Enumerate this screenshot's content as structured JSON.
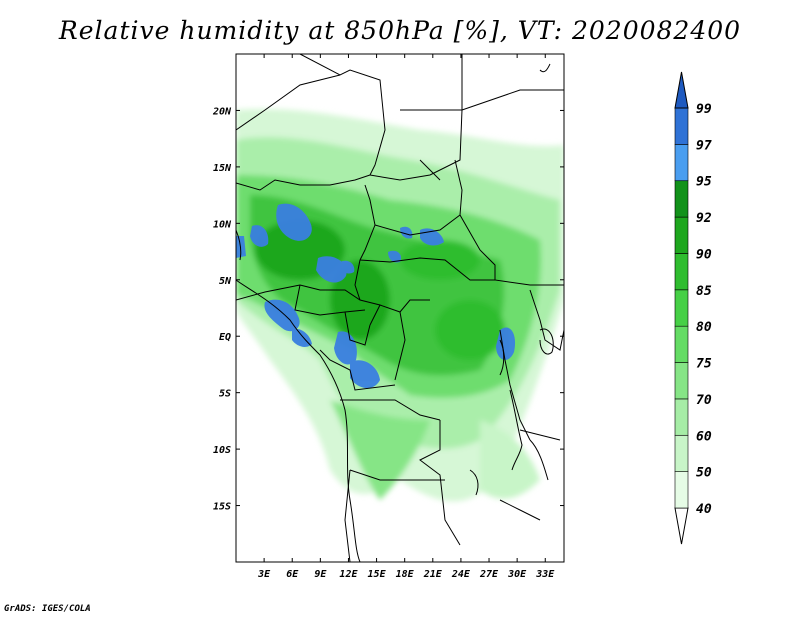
{
  "title": "Relative humidity at 850hPa [%], VT: 2020082400",
  "credit": "GrADS: IGES/COLA",
  "lat_labels": [
    "20N",
    "15N",
    "10N",
    "5N",
    "EQ",
    "5S",
    "10S",
    "15S"
  ],
  "lat_values": [
    20,
    15,
    10,
    5,
    0,
    -5,
    -10,
    -15
  ],
  "lon_labels": [
    "3E",
    "6E",
    "9E",
    "12E",
    "15E",
    "18E",
    "21E",
    "24E",
    "27E",
    "30E",
    "33E"
  ],
  "lon_values": [
    3,
    6,
    9,
    12,
    15,
    18,
    21,
    24,
    27,
    30,
    33
  ],
  "extent": {
    "lon_min": 0,
    "lon_max": 35,
    "lat_min": -20,
    "lat_max": 25
  },
  "colorbar": {
    "levels": [
      "40",
      "50",
      "60",
      "70",
      "75",
      "80",
      "85",
      "90",
      "92",
      "95",
      "97",
      "99"
    ],
    "colors": [
      "#ffffff",
      "#e6fce6",
      "#c8f5c8",
      "#a6eda6",
      "#86e586",
      "#64dc64",
      "#46d046",
      "#2fbd2f",
      "#1ea71e",
      "#12921a",
      "#4a9ef0",
      "#2f72d6",
      "#1e5ac0"
    ]
  }
}
